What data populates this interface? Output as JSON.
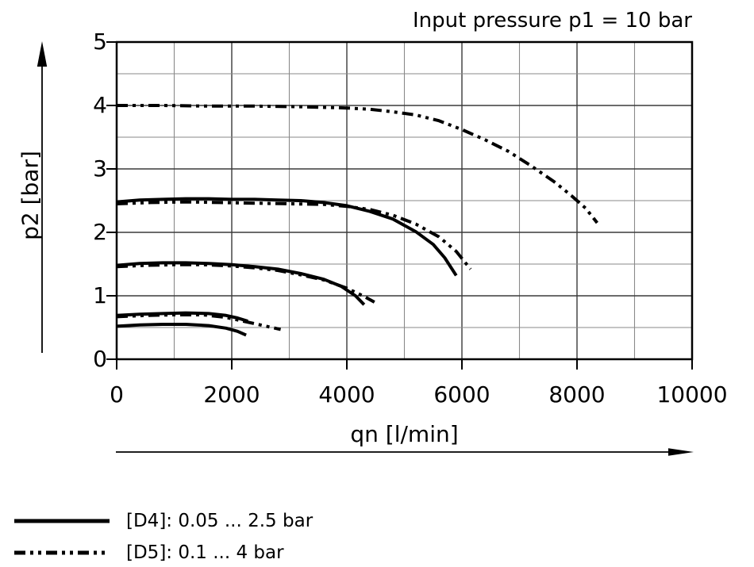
{
  "colors": {
    "background": "#ffffff",
    "curve": "#000000",
    "frame": "#000000",
    "grid_major": "#3a3a3a",
    "grid_minor": "#8a8a8a",
    "text": "#000000"
  },
  "chart_data": {
    "type": "line",
    "title": "Input pressure p1 = 10 bar",
    "xlabel": "qn [l/min]",
    "ylabel": "p2 [bar]",
    "xlim": [
      0,
      10000
    ],
    "ylim": [
      0,
      5
    ],
    "x_grid_step": 1000,
    "y_grid_step": 0.5,
    "grid": true,
    "x_tick_values": [
      0,
      2000,
      4000,
      6000,
      8000,
      10000
    ],
    "x_tick_labels": [
      "0",
      "2000",
      "4000",
      "6000",
      "8000",
      "10000"
    ],
    "y_tick_values": [
      0,
      1,
      2,
      3,
      4,
      5
    ],
    "y_tick_labels": [
      "0",
      "1",
      "2",
      "3",
      "4",
      "5"
    ],
    "legend_position": "bottom-left",
    "series": [
      {
        "id": "d4-setpoint-2_5bar",
        "variant": "D4",
        "style": "solid",
        "points": [
          [
            0,
            2.48
          ],
          [
            400,
            2.51
          ],
          [
            800,
            2.52
          ],
          [
            1200,
            2.53
          ],
          [
            1600,
            2.53
          ],
          [
            2000,
            2.52
          ],
          [
            2400,
            2.52
          ],
          [
            2800,
            2.51
          ],
          [
            3200,
            2.5
          ],
          [
            3600,
            2.47
          ],
          [
            4000,
            2.42
          ],
          [
            4400,
            2.33
          ],
          [
            4800,
            2.21
          ],
          [
            5200,
            2.01
          ],
          [
            5500,
            1.81
          ],
          [
            5700,
            1.6
          ],
          [
            5900,
            1.32
          ]
        ]
      },
      {
        "id": "d4-setpoint-1_5bar",
        "variant": "D4",
        "style": "solid",
        "points": [
          [
            0,
            1.48
          ],
          [
            400,
            1.51
          ],
          [
            800,
            1.52
          ],
          [
            1200,
            1.52
          ],
          [
            1600,
            1.51
          ],
          [
            2000,
            1.49
          ],
          [
            2400,
            1.46
          ],
          [
            2800,
            1.42
          ],
          [
            3200,
            1.35
          ],
          [
            3600,
            1.26
          ],
          [
            3900,
            1.15
          ],
          [
            4150,
            1.0
          ],
          [
            4300,
            0.86
          ]
        ]
      },
      {
        "id": "d4-setpoint-0_7bar",
        "variant": "D4",
        "style": "solid",
        "points": [
          [
            0,
            0.69
          ],
          [
            400,
            0.71
          ],
          [
            800,
            0.72
          ],
          [
            1200,
            0.73
          ],
          [
            1600,
            0.72
          ],
          [
            1900,
            0.69
          ],
          [
            2100,
            0.65
          ],
          [
            2280,
            0.6
          ]
        ]
      },
      {
        "id": "d4-setpoint-0_5bar",
        "variant": "D4",
        "style": "solid",
        "points": [
          [
            0,
            0.52
          ],
          [
            400,
            0.54
          ],
          [
            800,
            0.55
          ],
          [
            1200,
            0.55
          ],
          [
            1600,
            0.53
          ],
          [
            1900,
            0.49
          ],
          [
            2100,
            0.44
          ],
          [
            2250,
            0.38
          ]
        ]
      },
      {
        "id": "d5-setpoint-4bar",
        "variant": "D5",
        "style": "dash-dot-dot",
        "points": [
          [
            0,
            4.0
          ],
          [
            800,
            4.0
          ],
          [
            1600,
            3.99
          ],
          [
            2400,
            3.99
          ],
          [
            3200,
            3.98
          ],
          [
            4000,
            3.96
          ],
          [
            4400,
            3.94
          ],
          [
            4800,
            3.9
          ],
          [
            5200,
            3.85
          ],
          [
            5600,
            3.76
          ],
          [
            6000,
            3.62
          ],
          [
            6400,
            3.46
          ],
          [
            6800,
            3.28
          ],
          [
            7200,
            3.05
          ],
          [
            7600,
            2.8
          ],
          [
            7900,
            2.58
          ],
          [
            8150,
            2.38
          ],
          [
            8350,
            2.15
          ]
        ]
      },
      {
        "id": "d5-setpoint-2_5bar",
        "variant": "D5",
        "style": "dash-dot-dot",
        "points": [
          [
            0,
            2.45
          ],
          [
            600,
            2.47
          ],
          [
            1200,
            2.48
          ],
          [
            1800,
            2.47
          ],
          [
            2400,
            2.46
          ],
          [
            3000,
            2.45
          ],
          [
            3600,
            2.44
          ],
          [
            4000,
            2.41
          ],
          [
            4400,
            2.36
          ],
          [
            4800,
            2.27
          ],
          [
            5200,
            2.13
          ],
          [
            5600,
            1.93
          ],
          [
            5900,
            1.7
          ],
          [
            6150,
            1.42
          ]
        ]
      },
      {
        "id": "d5-setpoint-1_5bar",
        "variant": "D5",
        "style": "dash-dot-dot",
        "points": [
          [
            0,
            1.46
          ],
          [
            500,
            1.48
          ],
          [
            1000,
            1.49
          ],
          [
            1500,
            1.49
          ],
          [
            2000,
            1.47
          ],
          [
            2400,
            1.44
          ],
          [
            2800,
            1.4
          ],
          [
            3200,
            1.33
          ],
          [
            3600,
            1.25
          ],
          [
            4000,
            1.12
          ],
          [
            4300,
            0.99
          ],
          [
            4480,
            0.9
          ]
        ]
      },
      {
        "id": "d5-setpoint-0_7bar",
        "variant": "D5",
        "style": "dash-dot-dot",
        "points": [
          [
            0,
            0.67
          ],
          [
            500,
            0.69
          ],
          [
            1000,
            0.7
          ],
          [
            1500,
            0.7
          ],
          [
            1900,
            0.66
          ],
          [
            2200,
            0.6
          ],
          [
            2500,
            0.54
          ],
          [
            2850,
            0.47
          ]
        ]
      }
    ],
    "legend": [
      {
        "label": "[D4]: 0.05 ... 2.5 bar",
        "style": "solid"
      },
      {
        "label": "[D5]: 0.1 ... 4 bar",
        "style": "dash-dot-dot"
      }
    ]
  }
}
